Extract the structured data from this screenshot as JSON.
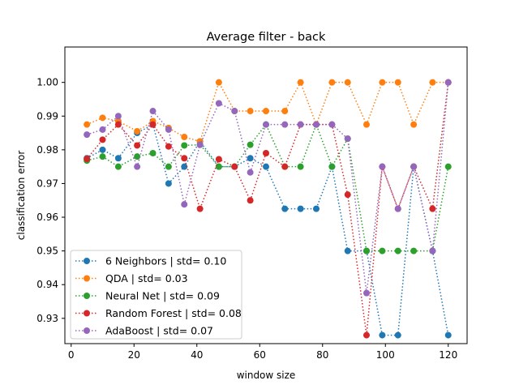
{
  "chart_data": {
    "type": "line",
    "title": "Average filter - back",
    "xlabel": "window size",
    "ylabel": "classification error",
    "xlim": [
      -2,
      126
    ],
    "ylim": [
      0.9225,
      1.0105
    ],
    "xticks": [
      0,
      20,
      40,
      60,
      80,
      100,
      120
    ],
    "xtick_labels": [
      "0",
      "20",
      "40",
      "60",
      "80",
      "100",
      "120"
    ],
    "yticks": [
      0.93,
      0.94,
      0.95,
      0.96,
      0.97,
      0.98,
      0.99,
      1.0
    ],
    "ytick_labels": [
      "0.93",
      "0.94",
      "0.95",
      "0.96",
      "0.97",
      "0.98",
      "0.99",
      "1.00"
    ],
    "grid": false,
    "legend_position": "lower-left",
    "x": [
      5,
      10,
      15,
      21,
      26,
      31,
      36,
      41,
      47,
      52,
      57,
      62,
      68,
      73,
      78,
      83,
      88,
      94,
      99,
      104,
      109,
      115,
      120
    ],
    "series": [
      {
        "name": "6 Neighbors | std= 0.10",
        "color": "#1f77b4",
        "values": [
          0.9775,
          0.98,
          0.9775,
          0.985,
          0.9875,
          0.97,
          0.975,
          0.9825,
          0.975,
          0.975,
          0.9775,
          0.975,
          0.9625,
          0.9625,
          0.9625,
          0.975,
          0.95,
          0.95,
          0.925,
          0.925,
          0.975,
          0.95,
          0.925
        ]
      },
      {
        "name": "QDA | std= 0.03",
        "color": "#ff7f0e",
        "values": [
          0.9875,
          0.9895,
          0.9885,
          0.9855,
          0.9885,
          0.9865,
          0.9838,
          0.9825,
          1.0,
          0.9915,
          0.9915,
          0.9915,
          0.9915,
          1.0,
          0.9875,
          1.0,
          1.0,
          0.9875,
          1.0,
          1.0,
          0.9875,
          1.0,
          1.0
        ]
      },
      {
        "name": "Neural Net | std= 0.09",
        "color": "#2ca02c",
        "values": [
          0.9768,
          0.978,
          0.975,
          0.978,
          0.979,
          0.975,
          0.9813,
          0.9815,
          0.975,
          0.975,
          0.9815,
          0.9875,
          0.975,
          0.975,
          0.9875,
          0.975,
          0.9833,
          0.95,
          0.95,
          0.95,
          0.95,
          0.95,
          0.975
        ]
      },
      {
        "name": "Random Forest | std= 0.08",
        "color": "#d62728",
        "values": [
          0.9773,
          0.983,
          0.9875,
          0.9813,
          0.9875,
          0.981,
          0.9775,
          0.9625,
          0.9772,
          0.975,
          0.965,
          0.979,
          0.975,
          0.9875,
          0.9875,
          0.9875,
          0.9667,
          0.925,
          0.975,
          0.9625,
          0.975,
          0.9625,
          1.0
        ]
      },
      {
        "name": "AdaBoost | std= 0.07",
        "color": "#9467bd",
        "values": [
          0.9845,
          0.986,
          0.99,
          0.975,
          0.9915,
          0.986,
          0.9638,
          0.9815,
          0.9938,
          0.9915,
          0.9733,
          0.9875,
          0.9875,
          0.9875,
          0.9875,
          0.9875,
          0.9833,
          0.9375,
          0.975,
          0.9625,
          0.975,
          0.95,
          1.0
        ]
      }
    ]
  }
}
